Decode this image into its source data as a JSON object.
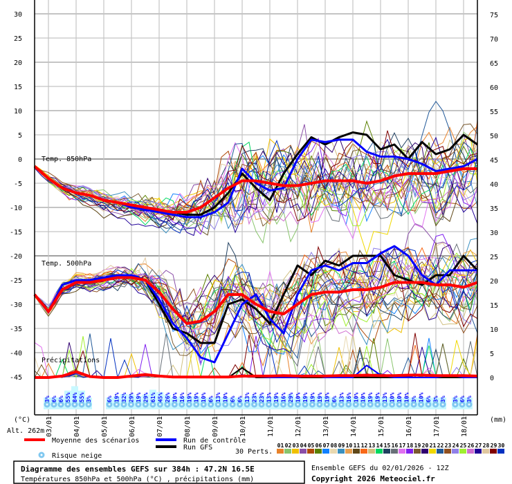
{
  "chart_data": {
    "type": "line",
    "title": "Diagramme des ensembles GEFS sur 384h : 47.2N 16.5E",
    "subtitle": "Températures 850hPa et 500hPa (°C) , précipitations (mm)",
    "run_info": "Ensemble GEFS du 02/01/2026 - 12Z",
    "copyright": "Copyright 2026 Meteociel.fr",
    "left_axis": {
      "unit_label": "(°C)",
      "range": [
        -45,
        30
      ],
      "ticks": [
        30,
        25,
        20,
        15,
        10,
        5,
        0,
        -5,
        -10,
        -15,
        -20,
        -25,
        -30,
        -35,
        -40,
        -45
      ]
    },
    "right_axis": {
      "unit_label": "(mm)",
      "range": [
        0,
        75
      ],
      "ticks": [
        75,
        70,
        65,
        60,
        55,
        50,
        45,
        40,
        35,
        30,
        25,
        20,
        15,
        10,
        5,
        0
      ]
    },
    "altitude_label": "Alt. 262m",
    "x_hours_range": [
      0,
      384
    ],
    "x_step_hours": 12,
    "date_ticks": [
      {
        "h": 12,
        "label": "03/01"
      },
      {
        "h": 36,
        "label": "04/01"
      },
      {
        "h": 60,
        "label": "05/01"
      },
      {
        "h": 84,
        "label": "06/01"
      },
      {
        "h": 108,
        "label": "07/01"
      },
      {
        "h": 132,
        "label": "08/01"
      },
      {
        "h": 156,
        "label": "09/01"
      },
      {
        "h": 180,
        "label": "10/01"
      },
      {
        "h": 204,
        "label": "11/01"
      },
      {
        "h": 228,
        "label": "12/01"
      },
      {
        "h": 252,
        "label": "13/01"
      },
      {
        "h": 276,
        "label": "14/01"
      },
      {
        "h": 300,
        "label": "15/01"
      },
      {
        "h": 324,
        "label": "16/01"
      },
      {
        "h": 348,
        "label": "17/01"
      },
      {
        "h": 372,
        "label": "18/01"
      }
    ],
    "section_labels": {
      "t850": "Temp. 850hPa",
      "t500": "Temp. 500hPa",
      "precip": "Précipitations"
    },
    "t850": {
      "mean": [
        -1.5,
        -4,
        -6,
        -7,
        -7.5,
        -8.5,
        -9,
        -9.5,
        -10,
        -10.5,
        -11,
        -11,
        -10,
        -8,
        -6,
        -4.5,
        -4.5,
        -5,
        -5.5,
        -5.5,
        -5,
        -4.5,
        -4.5,
        -4.5,
        -5,
        -4.5,
        -3.5,
        -3,
        -3,
        -3,
        -2.5,
        -2,
        -2
      ],
      "control": [
        -1.5,
        -4,
        -6,
        -7,
        -7.5,
        -8.5,
        -9,
        -10,
        -10.5,
        -11,
        -11.5,
        -12,
        -12,
        -11,
        -9,
        -2,
        -5,
        -6.5,
        -6,
        0,
        4,
        3.5,
        4,
        4,
        1.5,
        0.5,
        0.5,
        0,
        -1,
        -2.5,
        -2,
        -1.5,
        0
      ],
      "gfs": [
        -1.5,
        -4,
        -6,
        -7,
        -7.5,
        -8.5,
        -9,
        -9.5,
        -10,
        -10.5,
        -11,
        -11.5,
        -11.5,
        -10,
        -7,
        -3,
        -6,
        -8.5,
        -3,
        1,
        4.5,
        3,
        4.5,
        5.5,
        5,
        2,
        3,
        0,
        3.5,
        1,
        2,
        5,
        3
      ],
      "perturbation_spread": [
        0.3,
        0.6,
        0.8,
        1,
        1,
        1.2,
        1.3,
        1.5,
        1.8,
        2,
        2.2,
        2.5,
        3,
        4,
        5,
        5.5,
        5.5,
        5.5,
        5.5,
        5.5,
        5.5,
        5.5,
        5.5,
        5.5,
        5.5,
        5.5,
        5.5,
        5.5,
        5.5,
        5.5,
        5.5,
        5.5,
        5.5
      ]
    },
    "t500": {
      "mean": [
        -28,
        -31.5,
        -27,
        -25.5,
        -25.5,
        -25,
        -24.5,
        -24.5,
        -25,
        -27.5,
        -31,
        -34,
        -33.5,
        -31.5,
        -28,
        -28,
        -30,
        -31.5,
        -32,
        -30,
        -28,
        -27.5,
        -27.5,
        -27,
        -27,
        -26.5,
        -25.5,
        -25.5,
        -25.5,
        -26,
        -26,
        -26.5,
        -25.5
      ],
      "control": [
        -28,
        -31.5,
        -26,
        -25,
        -25,
        -24.5,
        -24,
        -24,
        -25,
        -29,
        -34,
        -37,
        -41,
        -42,
        -36,
        -30,
        -28,
        -33,
        -36,
        -28,
        -23,
        -22,
        -23,
        -21.5,
        -21.5,
        -19.5,
        -18,
        -20,
        -24,
        -26,
        -23,
        -23,
        -23
      ],
      "gfs": [
        -28,
        -31.5,
        -26,
        -25,
        -25,
        -24.5,
        -24,
        -24,
        -25,
        -30,
        -35,
        -36,
        -38,
        -38,
        -30,
        -29,
        -31,
        -34,
        -28,
        -22,
        -24,
        -21,
        -22,
        -20,
        -20,
        -20,
        -24,
        -25,
        -26,
        -24,
        -24,
        -20,
        -23
      ],
      "perturbation_spread": [
        0.3,
        0.8,
        1,
        1,
        1,
        1.2,
        1.5,
        1.8,
        2.5,
        3.5,
        4,
        4.5,
        5,
        5,
        5,
        5,
        5,
        5,
        5,
        5,
        5,
        5,
        5,
        5,
        5,
        5,
        5,
        5,
        5,
        5,
        5,
        5,
        5
      ]
    },
    "precip": {
      "mean": [
        0,
        0,
        0.3,
        1.2,
        0.2,
        0,
        0,
        0.3,
        0.6,
        0.3,
        0.1,
        0.1,
        0.1,
        0.1,
        0.1,
        0.3,
        0.3,
        0.3,
        0.4,
        0.3,
        0.3,
        0.3,
        0.4,
        0.4,
        0.5,
        0.4,
        0.4,
        0.5,
        0.5,
        0.4,
        0.4,
        0.4,
        0.3
      ],
      "control": [
        0,
        0,
        0.2,
        1,
        0.2,
        0,
        0,
        0.2,
        0.5,
        0.2,
        0,
        0,
        0,
        0,
        0,
        0.5,
        0.2,
        0,
        0,
        0,
        0.5,
        0,
        0,
        0,
        2.5,
        0.5,
        0,
        0,
        0,
        0,
        0.5,
        0,
        0
      ],
      "gfs": [
        0,
        0,
        0.2,
        1,
        0.2,
        0,
        0,
        0.2,
        0.5,
        0.2,
        0,
        0,
        0,
        0,
        0,
        2,
        0,
        0,
        0,
        0,
        0,
        0,
        0,
        0,
        0,
        0,
        0,
        0,
        0,
        0,
        0,
        0,
        0
      ]
    },
    "perturbations": {
      "label": "30 Perts.",
      "ids": [
        "01",
        "02",
        "03",
        "04",
        "05",
        "06",
        "07",
        "08",
        "09",
        "10",
        "11",
        "12",
        "13",
        "14",
        "15",
        "16",
        "17",
        "18",
        "19",
        "20",
        "21",
        "22",
        "23",
        "24",
        "25",
        "26",
        "27",
        "28",
        "29",
        "30"
      ],
      "colors": [
        "#e8822a",
        "#88c46c",
        "#f0c000",
        "#8b4fa8",
        "#b04a0a",
        "#5a8000",
        "#1080ff",
        "#e8d8b0",
        "#3a90c0",
        "#e8a050",
        "#604818",
        "#f86818",
        "#d0c080",
        "#00d860",
        "#204060",
        "#687078",
        "#e070f0",
        "#8020f0",
        "#7a5a30",
        "#300070",
        "#f0d800",
        "#205898",
        "#905020",
        "#9080e8",
        "#a0f030",
        "#d070d0",
        "#200098",
        "#e0c8a0",
        "#800000",
        "#0030c0"
      ]
    },
    "snow_risk_percent": [
      [
        3,
        6,
        6,
        55,
        84,
        55,
        3
      ],
      [
        6,
        19,
        32,
        29,
        19,
        29,
        61,
        45,
        26,
        10,
        16,
        19,
        19,
        10,
        6,
        13,
        10,
        6,
        6,
        13,
        23,
        23,
        13,
        19,
        16,
        29,
        10,
        19,
        19,
        19,
        19,
        6,
        13,
        16,
        10,
        10,
        19,
        19,
        13,
        10,
        10,
        10,
        3,
        10,
        6,
        3,
        3
      ],
      [
        3,
        6,
        3
      ]
    ],
    "legend": [
      {
        "label": "Moyenne des scénarios",
        "color": "#ff0000"
      },
      {
        "label": "Run de contrôle",
        "color": "#0000ff"
      },
      {
        "label": "Run GFS",
        "color": "#000000"
      },
      {
        "label": "Risque neige",
        "color": "#80c8f0"
      }
    ]
  }
}
